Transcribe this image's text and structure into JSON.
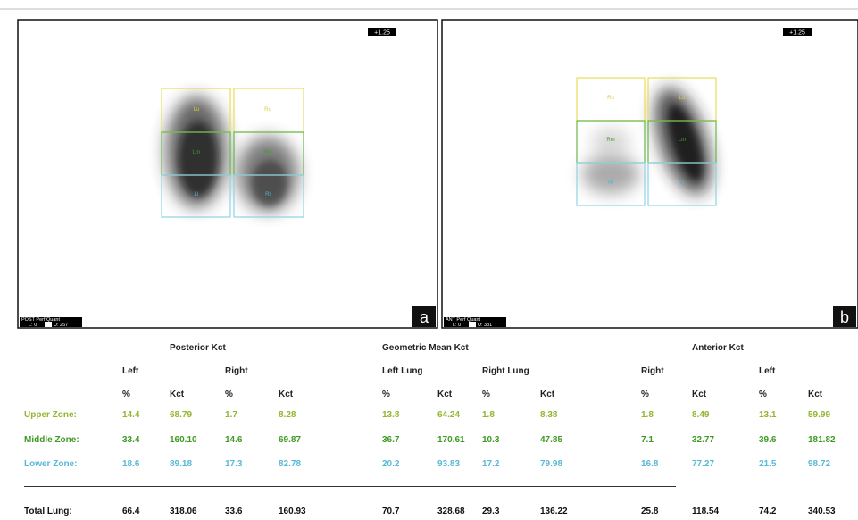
{
  "panels": [
    {
      "letter": "a",
      "scale": "+1.25",
      "caption": "POST Perf Quant",
      "low": "L: 0",
      "high": "U: 257",
      "rois": [
        "Lu",
        "Ru",
        "Lm",
        "Rm",
        "Ll",
        "Rl"
      ]
    },
    {
      "letter": "b",
      "scale": "+1.25",
      "caption": "ANT Perf Quant",
      "low": "L: 0",
      "high": "U: 331",
      "rois": [
        "Ru",
        "Lu",
        "Rm",
        "Lm",
        "Rl",
        "Ll"
      ]
    }
  ],
  "table": {
    "group_headers": [
      "Posterior Kct",
      "Geometric Mean Kct",
      "Anterior Kct"
    ],
    "side_headers": [
      "Left",
      "Right",
      "Left Lung",
      "Right Lung",
      "Right",
      "Left"
    ],
    "column_headers": [
      "%",
      "Kct",
      "%",
      "Kct",
      "%",
      "Kct",
      "%",
      "Kct",
      "%",
      "Kct",
      "%",
      "Kct"
    ],
    "rows": [
      {
        "label": "Upper Zone:",
        "cells": [
          "14.4",
          "68.79",
          "1.7",
          "8.28",
          "13.8",
          "64.24",
          "1.8",
          "8.38",
          "1.8",
          "8.49",
          "13.1",
          "59.99"
        ]
      },
      {
        "label": "Middle Zone:",
        "cells": [
          "33.4",
          "160.10",
          "14.6",
          "69.87",
          "36.7",
          "170.61",
          "10.3",
          "47.85",
          "7.1",
          "32.77",
          "39.6",
          "181.82"
        ]
      },
      {
        "label": "Lower Zone:",
        "cells": [
          "18.6",
          "89.18",
          "17.3",
          "82.78",
          "20.2",
          "93.83",
          "17.2",
          "79.98",
          "16.8",
          "77.27",
          "21.5",
          "98.72"
        ]
      },
      {
        "label": "Total Lung:",
        "cells": [
          "66.4",
          "318.06",
          "33.6",
          "160.93",
          "70.7",
          "328.68",
          "29.3",
          "136.22",
          "25.8",
          "118.54",
          "74.2",
          "340.53"
        ]
      }
    ]
  }
}
